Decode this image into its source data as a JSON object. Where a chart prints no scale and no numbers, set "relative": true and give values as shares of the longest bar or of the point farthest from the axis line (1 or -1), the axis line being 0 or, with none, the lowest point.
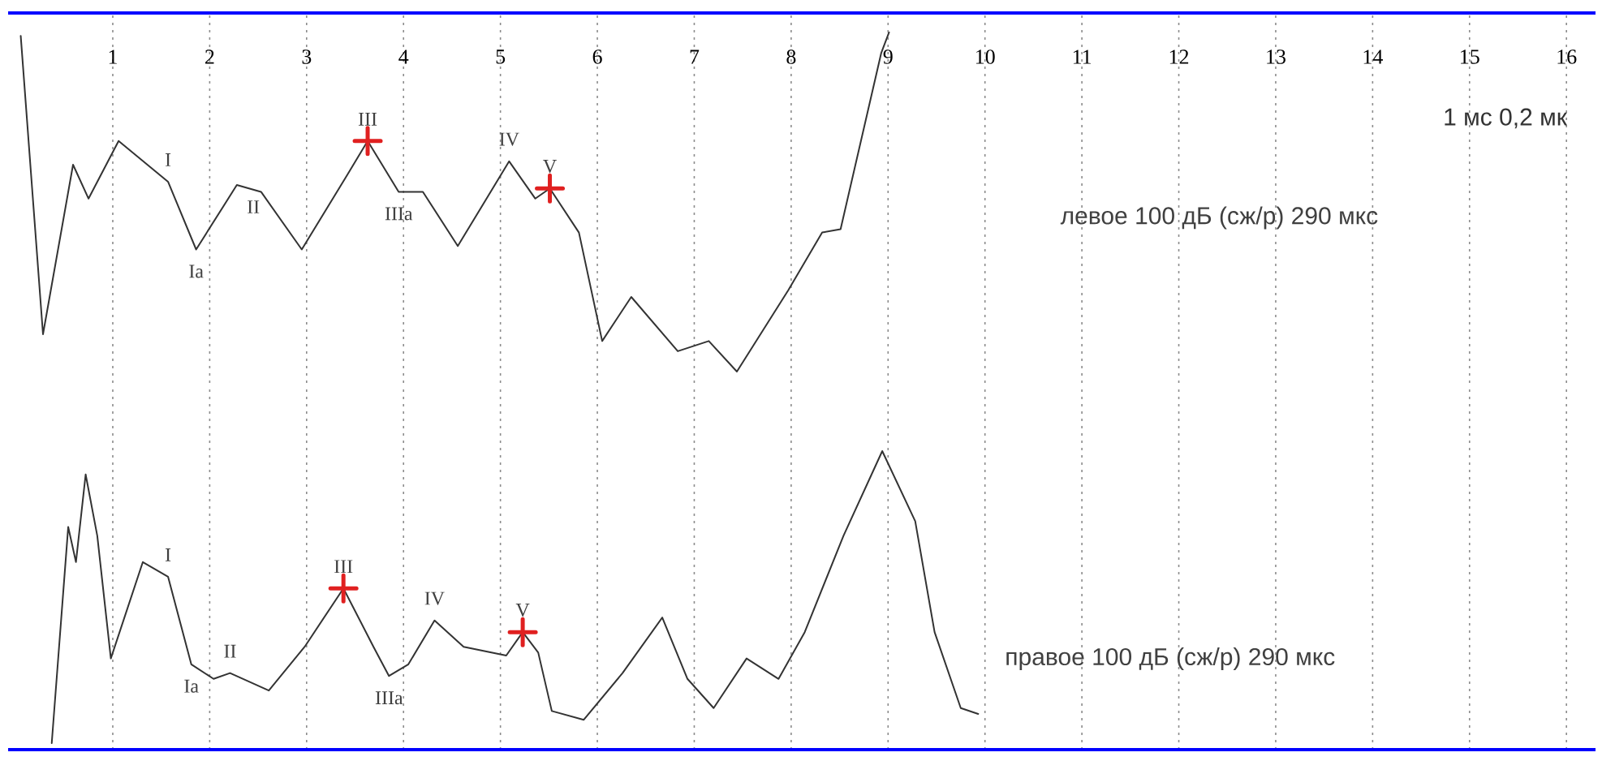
{
  "chart_data": [
    {
      "type": "line",
      "title": "левое 100 дБ (сж/р) 290 мкс",
      "relative": true,
      "xlim": [
        -0.08,
        16.3
      ],
      "xticks": [
        1,
        2,
        3,
        4,
        5,
        6,
        7,
        8,
        9,
        10,
        11,
        12,
        13,
        14,
        15,
        16
      ],
      "grid": "x",
      "series": [
        {
          "color": "#333333",
          "x": [
            0.05,
            0.28,
            0.59,
            0.75,
            1.06,
            1.57,
            1.86,
            2.28,
            2.53,
            2.95,
            3.42,
            3.63,
            3.95,
            4.2,
            4.56,
            5.09,
            5.36,
            5.51,
            5.81,
            6.05,
            6.35,
            6.83,
            7.15,
            7.44,
            7.97,
            8.32,
            8.51,
            8.93,
            9.01
          ],
          "values": [
            0.99,
            0.11,
            0.61,
            0.51,
            0.68,
            0.56,
            0.36,
            0.55,
            0.53,
            0.36,
            0.58,
            0.68,
            0.53,
            0.53,
            0.37,
            0.62,
            0.51,
            0.54,
            0.41,
            0.09,
            0.22,
            0.06,
            0.09,
            0,
            0.24,
            0.41,
            0.42,
            0.94,
            1
          ]
        },
        {
          "type": "scatter",
          "color": "#e02020",
          "marker": "cross",
          "x": [
            3.63,
            5.51
          ],
          "values": [
            0.68,
            0.54
          ]
        }
      ],
      "annotations": [
        "1 мс 0,2 мк",
        {
          "text": "I",
          "x": 1.57,
          "y": 0.56
        },
        {
          "text": "Ia",
          "x": 1.86,
          "y": 0.36
        },
        {
          "text": "II",
          "x": 2.45,
          "y": 0.55
        },
        {
          "text": "III",
          "x": 3.63,
          "y": 0.68
        },
        {
          "text": "IIIa",
          "x": 3.95,
          "y": 0.53
        },
        {
          "text": "IV",
          "x": 5.09,
          "y": 0.62
        },
        {
          "text": "V",
          "x": 5.51,
          "y": 0.54
        }
      ]
    },
    {
      "type": "line",
      "title": "правое 100 дБ (сж/р) 290 мкс",
      "relative": true,
      "xlim": [
        -0.08,
        16.3
      ],
      "xticks": [
        1,
        2,
        3,
        4,
        5,
        6,
        7,
        8,
        9,
        10,
        11,
        12,
        13,
        14,
        15,
        16
      ],
      "tick_labels": false,
      "grid": "x",
      "series": [
        {
          "color": "#333333",
          "x": [
            0.37,
            0.54,
            0.62,
            0.72,
            0.84,
            0.98,
            1.31,
            1.57,
            1.81,
            2.04,
            2.21,
            2.61,
            2.98,
            3.38,
            3.69,
            3.85,
            4.05,
            4.32,
            4.62,
            5.06,
            5.23,
            5.39,
            5.53,
            5.86,
            6.26,
            6.67,
            6.93,
            7.2,
            7.54,
            7.87,
            8.14,
            8.54,
            8.94,
            9.28,
            9.48,
            9.75,
            9.93
          ],
          "values": [
            0,
            0.74,
            0.62,
            0.92,
            0.71,
            0.29,
            0.62,
            0.57,
            0.27,
            0.22,
            0.24,
            0.18,
            0.33,
            0.53,
            0.33,
            0.23,
            0.27,
            0.42,
            0.33,
            0.3,
            0.38,
            0.31,
            0.11,
            0.08,
            0.24,
            0.43,
            0.22,
            0.12,
            0.29,
            0.22,
            0.38,
            0.71,
            1,
            0.76,
            0.38,
            0.12,
            0.1
          ]
        },
        {
          "type": "scatter",
          "color": "#e02020",
          "marker": "cross",
          "x": [
            3.38,
            5.23
          ],
          "values": [
            0.53,
            0.38
          ]
        }
      ],
      "annotations": [
        {
          "text": "I",
          "x": 1.57,
          "y": 0.57
        },
        {
          "text": "Ia",
          "x": 1.81,
          "y": 0.27
        },
        {
          "text": "II",
          "x": 2.21,
          "y": 0.24
        },
        {
          "text": "III",
          "x": 3.38,
          "y": 0.53
        },
        {
          "text": "IIIa",
          "x": 3.85,
          "y": 0.23
        },
        {
          "text": "IV",
          "x": 4.32,
          "y": 0.42
        },
        {
          "text": "V",
          "x": 5.23,
          "y": 0.38
        }
      ]
    }
  ]
}
